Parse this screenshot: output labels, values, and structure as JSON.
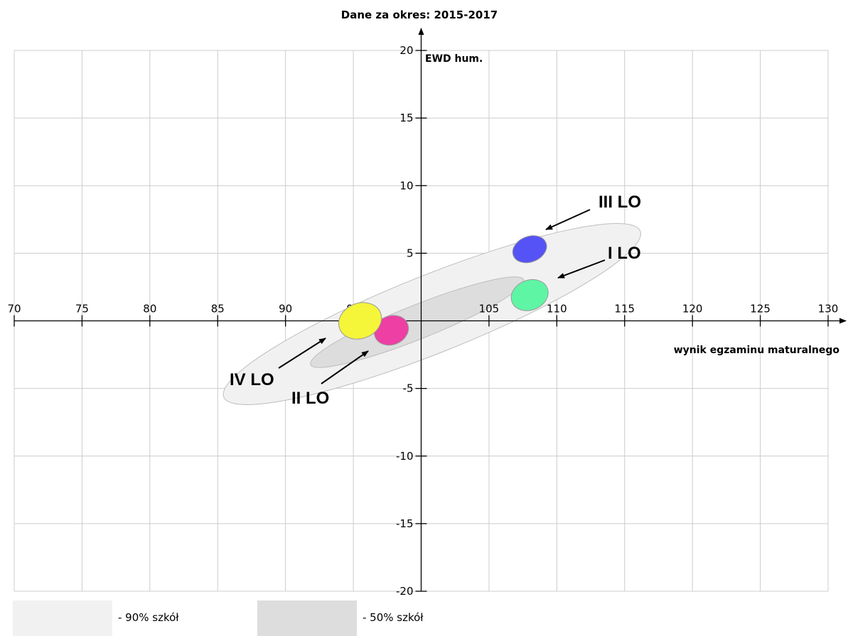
{
  "chart_data": {
    "type": "scatter",
    "title": "Dane za okres: 2015-2017",
    "xlabel": "wynik egzaminu maturalnego",
    "ylabel": "EWD hum.",
    "xlim": [
      70,
      130
    ],
    "ylim": [
      -20,
      20
    ],
    "x_ticks": [
      70,
      75,
      80,
      85,
      90,
      95,
      105,
      110,
      115,
      120,
      125,
      130
    ],
    "y_ticks": [
      20,
      15,
      10,
      5,
      -5,
      -10,
      -15,
      -20
    ],
    "grid": true,
    "regions": [
      {
        "label": "- 90% szkół",
        "color": "#f1f1f1",
        "center": [
          100.8,
          0.5
        ],
        "x_range": [
          85,
          115.7
        ],
        "y_range": [
          -6.7,
          6.7
        ]
      },
      {
        "label": "- 50% szkół",
        "color": "#dddddd",
        "center": [
          99.7,
          -0.1
        ],
        "x_range": [
          92,
          107.7
        ],
        "y_range": [
          -3.3,
          3.4
        ]
      }
    ],
    "series": [
      {
        "name": "I LO",
        "color": "#5ef5a5",
        "x": 108.0,
        "y": 1.9,
        "x_range": [
          106.7,
          109.3
        ],
        "y_range": [
          0.8,
          3.1
        ]
      },
      {
        "name": "II LO",
        "color": "#ee3fa4",
        "x": 97.8,
        "y": -0.7,
        "x_range": [
          96.6,
          99.0
        ],
        "y_range": [
          -1.8,
          0.4
        ]
      },
      {
        "name": "III LO",
        "color": "#5553f5",
        "x": 108.0,
        "y": 5.3,
        "x_range": [
          106.8,
          109.2
        ],
        "y_range": [
          4.3,
          6.3
        ]
      },
      {
        "name": "IV LO",
        "color": "#f5f53a",
        "x": 95.5,
        "y": 0.0,
        "x_range": [
          94.0,
          97.0
        ],
        "y_range": [
          -1.3,
          1.4
        ]
      }
    ]
  }
}
